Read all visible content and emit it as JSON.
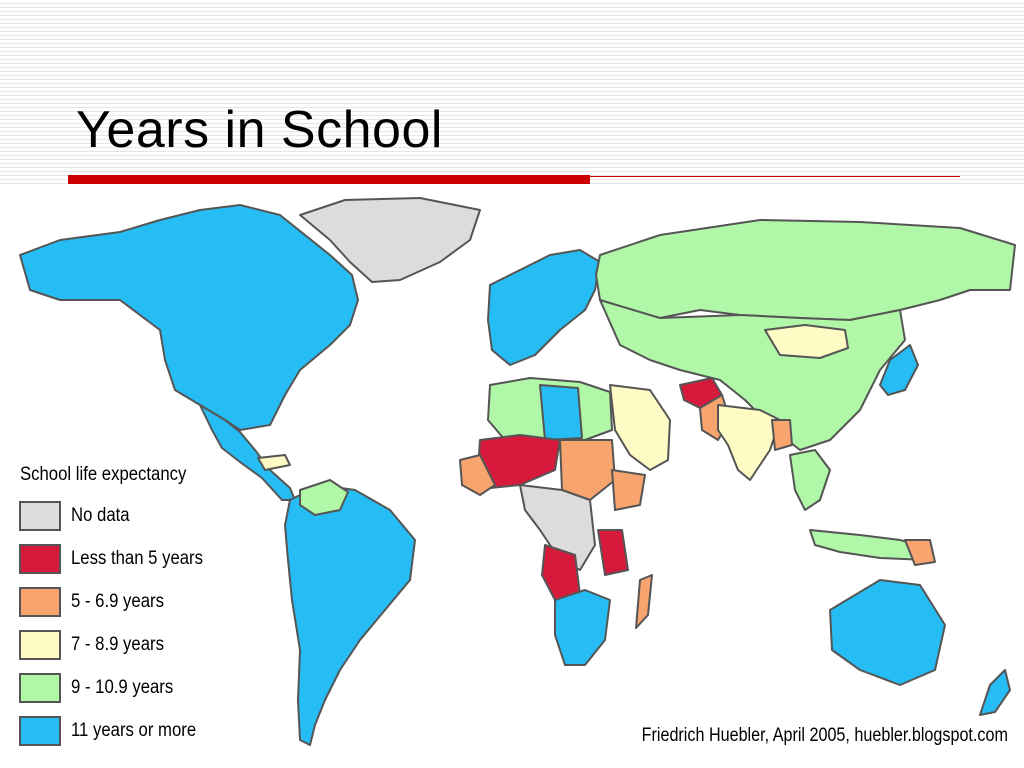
{
  "slide": {
    "title": "Years in School"
  },
  "legend": {
    "title": "School life expectancy",
    "items": [
      {
        "label": "No data",
        "color": "#dcdcdc"
      },
      {
        "label": "Less than 5 years",
        "color": "#d7193c"
      },
      {
        "label": "5 - 6.9 years",
        "color": "#f8a46e"
      },
      {
        "label": "7 - 8.9 years",
        "color": "#fffbc4"
      },
      {
        "label": "9 - 10.9 years",
        "color": "#b0f7a8"
      },
      {
        "label": "11 years or more",
        "color": "#25bdf4"
      }
    ]
  },
  "credit": "Friedrich Huebler, April 2005, huebler.blogspot.com",
  "colors": {
    "accent": "#cc0000",
    "border": "#555555"
  }
}
